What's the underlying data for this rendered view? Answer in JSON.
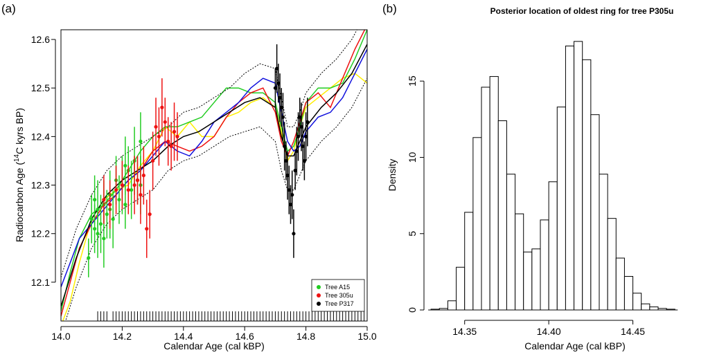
{
  "chart_data": [
    {
      "type": "line",
      "panel_label": "(a)",
      "title": "",
      "xlabel": "Calendar Age (cal kBP)",
      "ylabel_main": "Radiocarbon Age (",
      "ylabel_sup": "14",
      "ylabel_rest": "C kyrs BP)",
      "xlim": [
        14.0,
        15.0
      ],
      "ylim": [
        12.02,
        12.62
      ],
      "xticks": [
        "14.0",
        "14.2",
        "14.4",
        "14.6",
        "14.8",
        "15.0"
      ],
      "yticks": [
        "12.1",
        "12.2",
        "12.3",
        "12.4",
        "12.5",
        "12.6"
      ],
      "grid": false,
      "legend_position": "bottom-right",
      "legend": [
        {
          "name": "Tree A15",
          "color": "#22cc22"
        },
        {
          "name": "Tree 305u",
          "color": "#ee1111"
        },
        {
          "name": "Tree P317",
          "color": "#000000"
        }
      ],
      "curves": [
        {
          "color": "#ffee00",
          "x": [
            14.0,
            14.03,
            14.06,
            14.1,
            14.14,
            14.18,
            14.22,
            14.26,
            14.3,
            14.34,
            14.38,
            14.42,
            14.46,
            14.5,
            14.54,
            14.58,
            14.62,
            14.66,
            14.7,
            14.72,
            14.74,
            14.76,
            14.78,
            14.8,
            14.84,
            14.88,
            14.92,
            14.96,
            15.0
          ],
          "y": [
            12.01,
            12.06,
            12.14,
            12.23,
            12.27,
            12.29,
            12.3,
            12.34,
            12.37,
            12.42,
            12.4,
            12.43,
            12.4,
            12.4,
            12.44,
            12.45,
            12.47,
            12.48,
            12.46,
            12.41,
            12.35,
            12.37,
            12.42,
            12.46,
            12.48,
            12.5,
            12.52,
            12.53,
            12.51
          ]
        },
        {
          "color": "#22cc22",
          "x": [
            14.0,
            14.03,
            14.06,
            14.1,
            14.14,
            14.18,
            14.22,
            14.26,
            14.3,
            14.34,
            14.38,
            14.42,
            14.46,
            14.5,
            14.54,
            14.58,
            14.62,
            14.66,
            14.7,
            14.72,
            14.74,
            14.76,
            14.78,
            14.8,
            14.84,
            14.88,
            14.92,
            14.96,
            15.0
          ],
          "y": [
            12.04,
            12.12,
            12.19,
            12.24,
            12.26,
            12.29,
            12.33,
            12.37,
            12.4,
            12.42,
            12.42,
            12.43,
            12.44,
            12.47,
            12.5,
            12.5,
            12.49,
            12.49,
            12.47,
            12.42,
            12.37,
            12.38,
            12.42,
            12.47,
            12.5,
            12.5,
            12.51,
            12.56,
            12.62
          ]
        },
        {
          "color": "#ee1111",
          "x": [
            14.0,
            14.03,
            14.06,
            14.1,
            14.14,
            14.18,
            14.22,
            14.26,
            14.3,
            14.34,
            14.38,
            14.42,
            14.46,
            14.5,
            14.54,
            14.58,
            14.62,
            14.66,
            14.7,
            14.72,
            14.74,
            14.76,
            14.78,
            14.8,
            14.84,
            14.88,
            14.92,
            14.96,
            15.0
          ],
          "y": [
            12.03,
            12.1,
            12.17,
            12.22,
            12.26,
            12.28,
            12.31,
            12.33,
            12.37,
            12.39,
            12.38,
            12.37,
            12.38,
            12.4,
            12.44,
            12.47,
            12.49,
            12.5,
            12.45,
            12.39,
            12.36,
            12.39,
            12.43,
            12.47,
            12.49,
            12.46,
            12.52,
            12.58,
            12.63
          ]
        },
        {
          "color": "#1111dd",
          "x": [
            14.0,
            14.03,
            14.06,
            14.1,
            14.14,
            14.18,
            14.22,
            14.26,
            14.3,
            14.34,
            14.38,
            14.42,
            14.46,
            14.5,
            14.54,
            14.58,
            14.62,
            14.66,
            14.7,
            14.72,
            14.74,
            14.76,
            14.78,
            14.8,
            14.84,
            14.88,
            14.92,
            14.96,
            15.0
          ],
          "y": [
            12.09,
            12.14,
            12.19,
            12.22,
            12.25,
            12.28,
            12.31,
            12.33,
            12.36,
            12.39,
            12.37,
            12.36,
            12.39,
            12.43,
            12.45,
            12.47,
            12.5,
            12.52,
            12.51,
            12.45,
            12.39,
            12.37,
            12.38,
            12.41,
            12.44,
            12.45,
            12.48,
            12.53,
            12.58
          ]
        },
        {
          "color": "#000000",
          "x": [
            14.0,
            14.05,
            14.1,
            14.15,
            14.2,
            14.25,
            14.3,
            14.35,
            14.4,
            14.45,
            14.5,
            14.55,
            14.6,
            14.65,
            14.7,
            14.72,
            14.74,
            14.76,
            14.78,
            14.8,
            14.85,
            14.9,
            14.95,
            15.0
          ],
          "y": [
            12.05,
            12.15,
            12.23,
            12.28,
            12.31,
            12.33,
            12.35,
            12.38,
            12.4,
            12.41,
            12.43,
            12.45,
            12.47,
            12.48,
            12.46,
            12.4,
            12.36,
            12.36,
            12.39,
            12.42,
            12.46,
            12.49,
            12.53,
            12.59
          ]
        },
        {
          "color": "#000000",
          "dashed": true,
          "x": [
            14.0,
            14.05,
            14.1,
            14.15,
            14.2,
            14.25,
            14.3,
            14.35,
            14.4,
            14.45,
            14.5,
            14.55,
            14.6,
            14.65,
            14.7,
            14.72,
            14.74,
            14.76,
            14.78,
            14.8,
            14.85,
            14.9,
            14.95,
            15.0
          ],
          "y": [
            12.11,
            12.21,
            12.28,
            12.33,
            12.36,
            12.38,
            12.4,
            12.42,
            12.45,
            12.46,
            12.48,
            12.5,
            12.53,
            12.55,
            12.54,
            12.48,
            12.42,
            12.42,
            12.45,
            12.49,
            12.53,
            12.56,
            12.6,
            12.66
          ]
        },
        {
          "color": "#000000",
          "dashed": true,
          "x": [
            14.0,
            14.05,
            14.1,
            14.15,
            14.2,
            14.25,
            14.3,
            14.35,
            14.4,
            14.45,
            14.5,
            14.55,
            14.6,
            14.65,
            14.7,
            14.72,
            14.74,
            14.76,
            14.78,
            14.8,
            14.85,
            14.9,
            14.95,
            15.0
          ],
          "y": [
            11.99,
            12.09,
            12.17,
            12.22,
            12.25,
            12.27,
            12.29,
            12.33,
            12.35,
            12.36,
            12.38,
            12.4,
            12.41,
            12.42,
            12.39,
            12.33,
            12.29,
            12.29,
            12.32,
            12.35,
            12.39,
            12.42,
            12.46,
            12.52
          ]
        }
      ],
      "points": [
        {
          "name": "Tree A15",
          "color": "#22cc22",
          "x": [
            14.09,
            14.1,
            14.11,
            14.12,
            14.12,
            14.13,
            14.14,
            14.14,
            14.15,
            14.16,
            14.17,
            14.18,
            14.19,
            14.2,
            14.21,
            14.22,
            14.23,
            14.24,
            14.25,
            14.26,
            14.11,
            14.16,
            14.21,
            14.26
          ],
          "y": [
            12.15,
            12.23,
            12.27,
            12.25,
            12.2,
            12.22,
            12.26,
            12.19,
            12.24,
            12.28,
            12.23,
            12.31,
            12.27,
            12.3,
            12.26,
            12.33,
            12.29,
            12.35,
            12.31,
            12.3,
            12.21,
            12.25,
            12.34,
            12.39
          ],
          "err": [
            0.04,
            0.05,
            0.05,
            0.06,
            0.05,
            0.06,
            0.05,
            0.06,
            0.05,
            0.05,
            0.06,
            0.05,
            0.05,
            0.06,
            0.05,
            0.05,
            0.06,
            0.07,
            0.05,
            0.06,
            0.05,
            0.06,
            0.06,
            0.06
          ]
        },
        {
          "name": "Tree 305u",
          "color": "#ee1111",
          "x": [
            14.14,
            14.16,
            14.18,
            14.2,
            14.22,
            14.24,
            14.26,
            14.28,
            14.29,
            14.3,
            14.31,
            14.32,
            14.33,
            14.34,
            14.35,
            14.36,
            14.37,
            14.38,
            14.27,
            14.25
          ],
          "y": [
            12.27,
            12.26,
            12.29,
            12.3,
            12.29,
            12.3,
            12.28,
            12.21,
            12.24,
            12.35,
            12.42,
            12.4,
            12.46,
            12.43,
            12.39,
            12.38,
            12.41,
            12.4,
            12.32,
            12.31
          ],
          "err": [
            0.05,
            0.05,
            0.05,
            0.05,
            0.05,
            0.06,
            0.06,
            0.06,
            0.05,
            0.06,
            0.06,
            0.06,
            0.06,
            0.05,
            0.05,
            0.05,
            0.06,
            0.05,
            0.06,
            0.05
          ]
        },
        {
          "name": "Tree P317",
          "color": "#000000",
          "x": [
            14.7,
            14.705,
            14.71,
            14.715,
            14.72,
            14.725,
            14.73,
            14.735,
            14.74,
            14.745,
            14.75,
            14.755,
            14.76,
            14.765,
            14.77,
            14.775,
            14.78,
            14.785,
            14.79,
            14.795,
            14.8,
            14.805
          ],
          "y": [
            12.5,
            12.54,
            12.51,
            12.48,
            12.46,
            12.44,
            12.38,
            12.35,
            12.32,
            12.29,
            12.26,
            12.28,
            12.2,
            12.33,
            12.37,
            12.4,
            12.44,
            12.42,
            12.38,
            12.35,
            12.4,
            12.43
          ],
          "err": [
            0.04,
            0.05,
            0.04,
            0.05,
            0.04,
            0.05,
            0.05,
            0.04,
            0.05,
            0.05,
            0.04,
            0.05,
            0.05,
            0.04,
            0.05,
            0.05,
            0.04,
            0.05,
            0.05,
            0.04,
            0.05,
            0.05
          ]
        }
      ],
      "rug_x": [
        14.12,
        14.13,
        14.14,
        14.15,
        14.17,
        14.18,
        14.19,
        14.2,
        14.21,
        14.22,
        14.23,
        14.24,
        14.25,
        14.26,
        14.27,
        14.28,
        14.29,
        14.3,
        14.31,
        14.32,
        14.33,
        14.34,
        14.35,
        14.36,
        14.37,
        14.38,
        14.39,
        14.4,
        14.41,
        14.42,
        14.43,
        14.44,
        14.45,
        14.46,
        14.47,
        14.48,
        14.49,
        14.5,
        14.51,
        14.52,
        14.53,
        14.54,
        14.55,
        14.56,
        14.57,
        14.58,
        14.59,
        14.6,
        14.61,
        14.62,
        14.63,
        14.64,
        14.65,
        14.66,
        14.67,
        14.68,
        14.69,
        14.7,
        14.71,
        14.72,
        14.73,
        14.74,
        14.75,
        14.76,
        14.77,
        14.78,
        14.79,
        14.8,
        14.81,
        14.82,
        14.83,
        14.84,
        14.85,
        14.86,
        14.87,
        14.88,
        14.89,
        14.9,
        14.91,
        14.92,
        14.93,
        14.94,
        14.95,
        14.96,
        14.97,
        14.98,
        14.99
      ]
    },
    {
      "type": "bar",
      "panel_label": "(b)",
      "title": "Posterior location of oldest ring for tree P305u",
      "xlabel": "Calendar Age (cal kBP)",
      "ylabel": "Density",
      "xlim": [
        14.325,
        14.5
      ],
      "ylim": [
        0,
        18.5
      ],
      "xticks": [
        "14.35",
        "14.40",
        "14.45"
      ],
      "yticks": [
        "0",
        "5",
        "10",
        "15"
      ],
      "bin_start": 14.33,
      "bin_width": 0.005,
      "values": [
        0.05,
        0.1,
        0.6,
        2.8,
        6.4,
        11.3,
        14.6,
        15.3,
        12.4,
        8.9,
        6.3,
        3.8,
        4.0,
        5.9,
        8.4,
        13.3,
        17.3,
        17.6,
        16.4,
        12.8,
        8.9,
        6.0,
        3.4,
        2.2,
        1.1,
        0.4,
        0.2,
        0.1,
        0.05
      ]
    }
  ]
}
